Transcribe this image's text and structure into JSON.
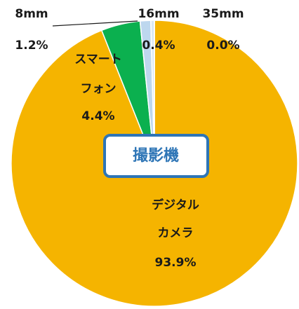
{
  "chart_data": {
    "type": "pie",
    "center_label": "撮影機",
    "categories": [
      [
        "デジタル",
        "カメラ"
      ],
      [
        "スマート",
        "フォン"
      ],
      [
        "8mm"
      ],
      [
        "16mm"
      ],
      [
        "35mm"
      ]
    ],
    "values": [
      93.9,
      4.4,
      1.2,
      0.4,
      0.0
    ],
    "value_labels": [
      "93.9%",
      "4.4%",
      "1.2%",
      "0.4%",
      "0.0%"
    ],
    "colors": [
      "#f5b400",
      "#0bb04f",
      "#bdd7ee",
      "#d9e8f5",
      "#eef5fb"
    ]
  }
}
